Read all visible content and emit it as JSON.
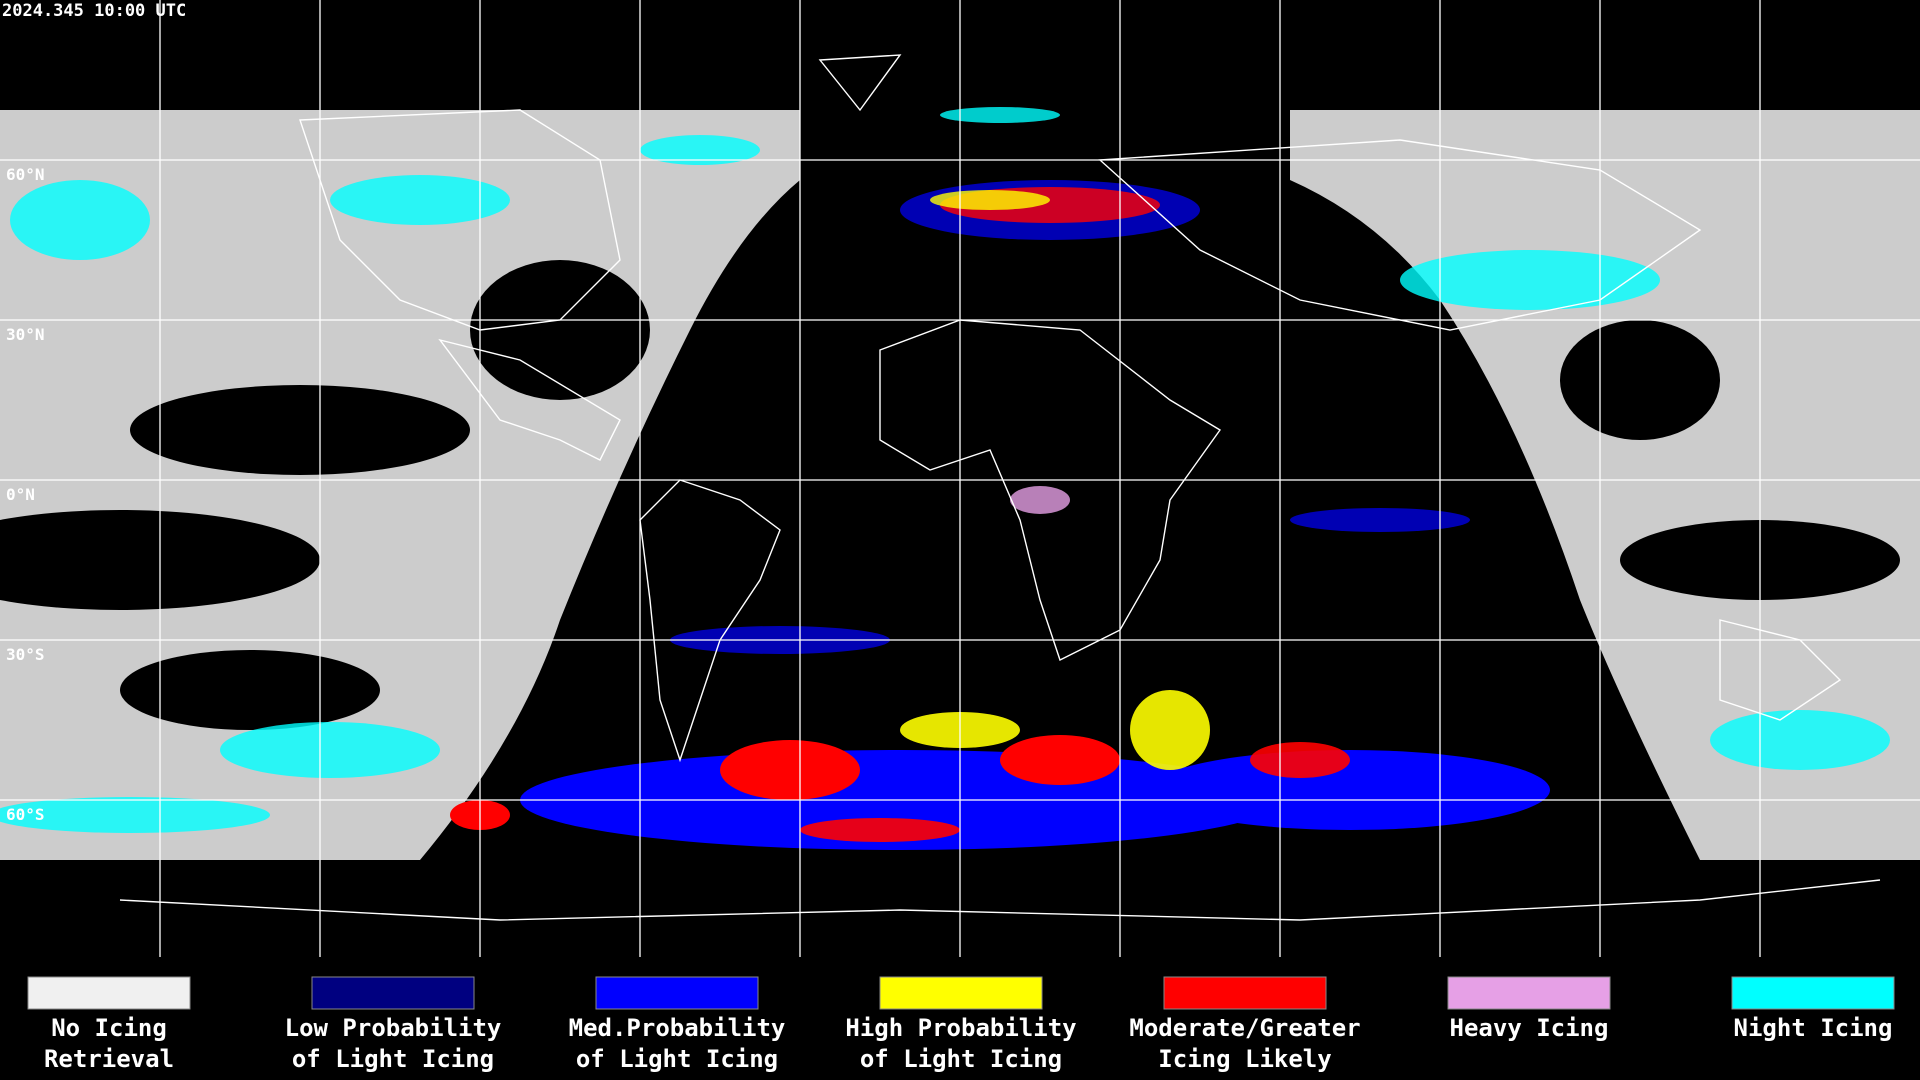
{
  "timestamp": "2024.345 10:00 UTC",
  "latitude_labels": [
    "60°N",
    "30°N",
    "0°N",
    "30°S",
    "60°S"
  ],
  "legend": [
    {
      "label_lines": [
        "No Icing",
        "Retrieval"
      ],
      "color": "#f0f0f0"
    },
    {
      "label_lines": [
        "Low Probability",
        "of Light Icing"
      ],
      "color": "#000080"
    },
    {
      "label_lines": [
        "Med.Probability",
        "of Light Icing"
      ],
      "color": "#0000ff"
    },
    {
      "label_lines": [
        "High Probability",
        "of Light Icing"
      ],
      "color": "#ffff00"
    },
    {
      "label_lines": [
        "Moderate/Greater",
        "Icing Likely"
      ],
      "color": "#ff0000"
    },
    {
      "label_lines": [
        "Heavy Icing"
      ],
      "color": "#e6a0e6"
    },
    {
      "label_lines": [
        "Night Icing"
      ],
      "color": "#00ffff"
    }
  ]
}
